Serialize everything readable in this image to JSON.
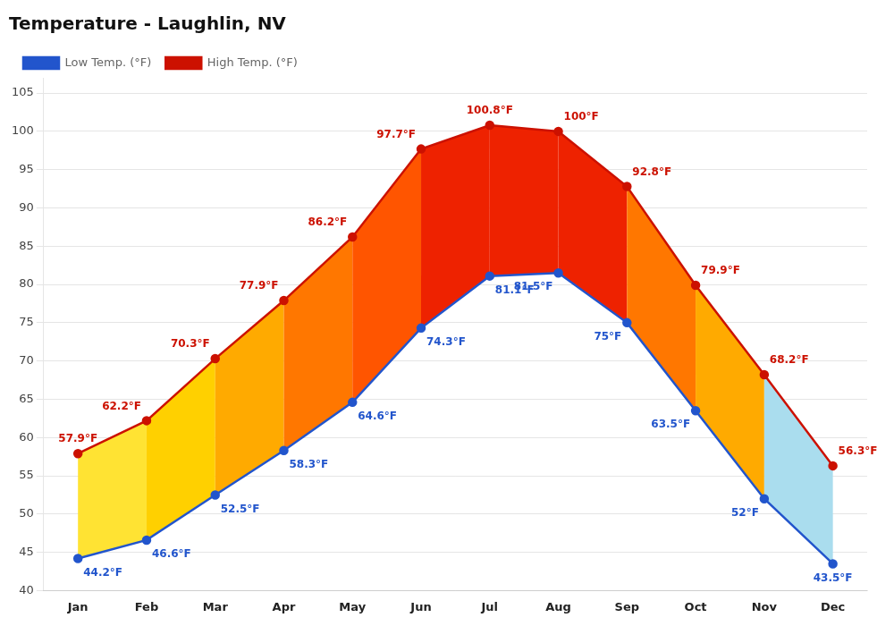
{
  "chart_data": {
    "type": "line",
    "title": "Temperature - Laughlin, NV",
    "categories": [
      "Jan",
      "Feb",
      "Mar",
      "Apr",
      "May",
      "Jun",
      "Jul",
      "Aug",
      "Sep",
      "Oct",
      "Nov",
      "Dec"
    ],
    "series": [
      {
        "name": "Low Temp. (°F)",
        "color": "#2255cc",
        "marker": "circle",
        "values": [
          44.2,
          46.6,
          52.5,
          58.3,
          64.6,
          74.3,
          81.1,
          81.5,
          75.0,
          63.5,
          52.0,
          43.5
        ],
        "value_labels": [
          "44.2°F",
          "46.6°F",
          "52.5°F",
          "58.3°F",
          "64.6°F",
          "74.3°F",
          "81.1°F",
          "81.5°F",
          "75°F",
          "63.5°F",
          "52°F",
          "43.5°F"
        ]
      },
      {
        "name": "High Temp. (°F)",
        "color": "#cc1100",
        "marker": "circle",
        "values": [
          57.9,
          62.2,
          70.3,
          77.9,
          86.2,
          97.7,
          100.8,
          100.0,
          92.8,
          79.9,
          68.2,
          56.3
        ],
        "value_labels": [
          "57.9°F",
          "62.2°F",
          "70.3°F",
          "77.9°F",
          "86.2°F",
          "97.7°F",
          "100.8°F",
          "100°F",
          "92.8°F",
          "79.9°F",
          "68.2°F",
          "56.3°F"
        ]
      }
    ],
    "colors": [
      "#FFE333",
      "#FFD000",
      "#FFAA00",
      "#FF7700",
      "#FF5500",
      "#EE2200",
      "#EE2200",
      "#EE2200",
      "#FF7700",
      "#FFAA00",
      "#AADDEE"
    ],
    "ylim": [
      40,
      107
    ],
    "yticks": [
      40,
      45,
      50,
      55,
      60,
      65,
      70,
      75,
      80,
      85,
      90,
      95,
      100,
      105
    ],
    "grid": true,
    "legend": "top",
    "data_labels": true
  }
}
